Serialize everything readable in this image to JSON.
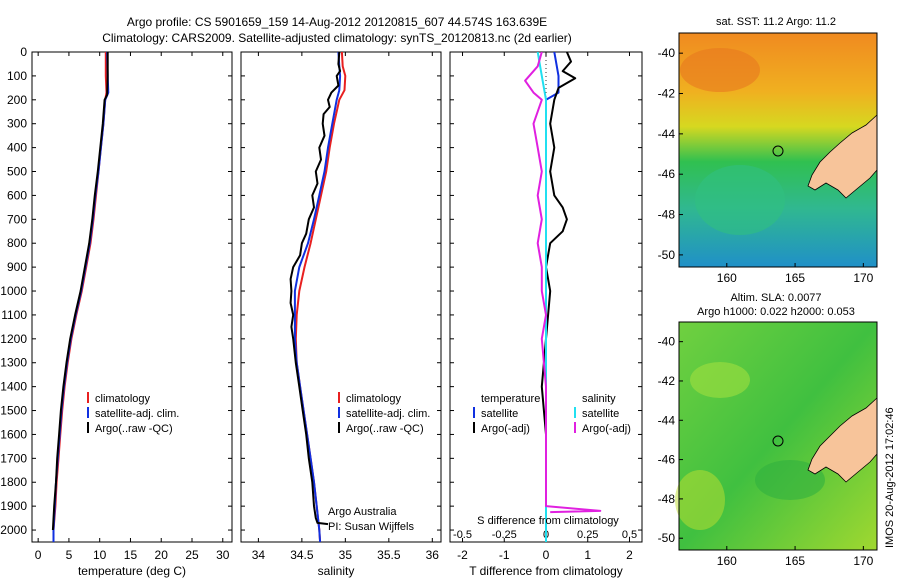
{
  "title": {
    "line1": "Argo profile: CS 5901659_159 14-Aug-2012 20120815_607 44.574S 163.639E",
    "line2": "Climatology: CARS2009. Satellite-adjusted climatology: synTS_20120813.nc (2d earlier)"
  },
  "colors": {
    "climatology": "#e82020",
    "satellite": "#1030e0",
    "argo": "#000000",
    "salinity_sat": "#20e0f0",
    "salinity_argo": "#e020e0",
    "land": "#f7c49a"
  },
  "chart_data": [
    {
      "type": "line",
      "name": "temperature-panel",
      "xlabel": "temperature (deg C)",
      "xlim": [
        -1,
        31.5
      ],
      "ylim": [
        2050,
        0
      ],
      "xticks": [
        0,
        5,
        10,
        15,
        20,
        25,
        30
      ],
      "yticks": [
        0,
        100,
        200,
        300,
        400,
        500,
        600,
        700,
        800,
        900,
        1000,
        1100,
        1200,
        1300,
        1400,
        1500,
        1600,
        1700,
        1800,
        1900,
        2000
      ],
      "legend": {
        "placement": "lower-center",
        "entries": [
          "climatology",
          "satellite-adj. clim.",
          "Argo(..raw -QC)"
        ]
      },
      "series": [
        {
          "name": "climatology",
          "color": "#e82020",
          "points": [
            [
              11.0,
              0
            ],
            [
              11.0,
              100
            ],
            [
              11.1,
              170
            ],
            [
              10.9,
              200
            ],
            [
              10.6,
              300
            ],
            [
              10.2,
              400
            ],
            [
              9.8,
              500
            ],
            [
              9.4,
              600
            ],
            [
              9.0,
              700
            ],
            [
              8.5,
              800
            ],
            [
              7.8,
              900
            ],
            [
              7.1,
              1000
            ],
            [
              6.2,
              1100
            ],
            [
              5.4,
              1200
            ],
            [
              4.8,
              1300
            ],
            [
              4.3,
              1400
            ],
            [
              3.9,
              1500
            ],
            [
              3.6,
              1600
            ],
            [
              3.3,
              1700
            ],
            [
              3.0,
              1800
            ],
            [
              2.8,
              1900
            ],
            [
              2.5,
              2000
            ],
            [
              2.5,
              2050
            ]
          ]
        },
        {
          "name": "satellite-adj. clim.",
          "color": "#1030e0",
          "points": [
            [
              11.2,
              0
            ],
            [
              11.3,
              100
            ],
            [
              11.4,
              170
            ],
            [
              10.9,
              200
            ],
            [
              10.6,
              300
            ],
            [
              10.2,
              400
            ],
            [
              9.8,
              500
            ],
            [
              9.3,
              600
            ],
            [
              8.9,
              700
            ],
            [
              8.4,
              800
            ],
            [
              7.7,
              900
            ],
            [
              7.0,
              1000
            ],
            [
              6.1,
              1100
            ],
            [
              5.3,
              1200
            ],
            [
              4.7,
              1300
            ],
            [
              4.2,
              1400
            ],
            [
              3.8,
              1500
            ],
            [
              3.5,
              1600
            ],
            [
              3.2,
              1700
            ],
            [
              2.9,
              1800
            ],
            [
              2.7,
              1900
            ],
            [
              2.5,
              2000
            ],
            [
              2.5,
              2050
            ]
          ]
        },
        {
          "name": "Argo(..raw -QC)",
          "color": "#000000",
          "points": [
            [
              11.3,
              0
            ],
            [
              11.3,
              100
            ],
            [
              11.2,
              180
            ],
            [
              10.8,
              200
            ],
            [
              10.5,
              300
            ],
            [
              10.1,
              400
            ],
            [
              9.7,
              500
            ],
            [
              9.2,
              600
            ],
            [
              8.8,
              700
            ],
            [
              8.3,
              800
            ],
            [
              7.6,
              900
            ],
            [
              6.9,
              1000
            ],
            [
              6.0,
              1100
            ],
            [
              5.2,
              1200
            ],
            [
              4.6,
              1300
            ],
            [
              4.1,
              1400
            ],
            [
              3.7,
              1500
            ],
            [
              3.4,
              1600
            ],
            [
              3.1,
              1700
            ],
            [
              2.9,
              1800
            ],
            [
              2.6,
              1900
            ],
            [
              2.4,
              2000
            ]
          ]
        }
      ]
    },
    {
      "type": "line",
      "name": "salinity-panel",
      "xlabel": "salinity",
      "xlim": [
        33.8,
        36.1
      ],
      "ylim": [
        2050,
        0
      ],
      "xticks": [
        34,
        34.5,
        35,
        35.5,
        36
      ],
      "legend": {
        "placement": "lower-right",
        "entries": [
          "climatology",
          "satellite-adj. clim.",
          "Argo(..raw -QC)"
        ]
      },
      "annotations": [
        "Argo Australia",
        "PI: Susan Wijffels"
      ],
      "series": [
        {
          "name": "climatology",
          "color": "#e82020",
          "points": [
            [
              34.96,
              0
            ],
            [
              34.97,
              60
            ],
            [
              35.0,
              100
            ],
            [
              34.99,
              160
            ],
            [
              34.93,
              200
            ],
            [
              34.87,
              300
            ],
            [
              34.82,
              400
            ],
            [
              34.78,
              500
            ],
            [
              34.72,
              600
            ],
            [
              34.66,
              700
            ],
            [
              34.6,
              800
            ],
            [
              34.53,
              900
            ],
            [
              34.47,
              1000
            ],
            [
              34.44,
              1100
            ],
            [
              34.43,
              1200
            ],
            [
              34.44,
              1300
            ],
            [
              34.48,
              1400
            ],
            [
              34.52,
              1500
            ],
            [
              34.56,
              1600
            ],
            [
              34.6,
              1700
            ],
            [
              34.64,
              1800
            ],
            [
              34.67,
              1900
            ],
            [
              34.7,
              2000
            ],
            [
              34.71,
              2050
            ]
          ]
        },
        {
          "name": "satellite-adj. clim.",
          "color": "#1030e0",
          "points": [
            [
              34.92,
              0
            ],
            [
              34.93,
              60
            ],
            [
              34.94,
              100
            ],
            [
              34.93,
              160
            ],
            [
              34.9,
              200
            ],
            [
              34.85,
              300
            ],
            [
              34.8,
              400
            ],
            [
              34.76,
              500
            ],
            [
              34.7,
              600
            ],
            [
              34.64,
              700
            ],
            [
              34.57,
              800
            ],
            [
              34.47,
              900
            ],
            [
              34.42,
              1000
            ],
            [
              34.42,
              1100
            ],
            [
              34.42,
              1200
            ],
            [
              34.44,
              1300
            ],
            [
              34.48,
              1400
            ],
            [
              34.52,
              1500
            ],
            [
              34.56,
              1600
            ],
            [
              34.6,
              1700
            ],
            [
              34.64,
              1800
            ],
            [
              34.67,
              1900
            ],
            [
              34.7,
              2000
            ],
            [
              34.71,
              2050
            ]
          ]
        },
        {
          "name": "Argo(..raw -QC)",
          "color": "#000000",
          "points": [
            [
              34.93,
              0
            ],
            [
              34.92,
              50
            ],
            [
              34.94,
              80
            ],
            [
              34.9,
              100
            ],
            [
              34.92,
              140
            ],
            [
              34.84,
              170
            ],
            [
              34.8,
              200
            ],
            [
              34.82,
              230
            ],
            [
              34.75,
              260
            ],
            [
              34.74,
              300
            ],
            [
              34.76,
              350
            ],
            [
              34.7,
              400
            ],
            [
              34.72,
              450
            ],
            [
              34.66,
              500
            ],
            [
              34.68,
              550
            ],
            [
              34.62,
              600
            ],
            [
              34.64,
              650
            ],
            [
              34.58,
              700
            ],
            [
              34.55,
              760
            ],
            [
              34.5,
              800
            ],
            [
              34.48,
              850
            ],
            [
              34.4,
              900
            ],
            [
              34.37,
              950
            ],
            [
              34.38,
              1000
            ],
            [
              34.37,
              1050
            ],
            [
              34.4,
              1100
            ],
            [
              34.38,
              1150
            ],
            [
              34.4,
              1200
            ],
            [
              34.43,
              1300
            ],
            [
              34.47,
              1400
            ],
            [
              34.51,
              1500
            ],
            [
              34.55,
              1600
            ],
            [
              34.58,
              1700
            ],
            [
              34.62,
              1800
            ],
            [
              34.64,
              1900
            ],
            [
              34.66,
              1950
            ],
            [
              34.68,
              1970
            ],
            [
              34.8,
              1975
            ]
          ]
        }
      ]
    },
    {
      "type": "line",
      "name": "difference-panel",
      "xlabel": "T difference from climatology",
      "x2label": "S difference from climatology",
      "xlim": [
        -2.3,
        2.3
      ],
      "ylim": [
        2050,
        0
      ],
      "xticks": [
        -2,
        -1,
        0,
        1,
        2
      ],
      "x2ticks": [
        "-0.5",
        "-0.25",
        "0",
        "0.25",
        "0.5"
      ],
      "x2tick_values": [
        -2,
        -1,
        0,
        1,
        2
      ],
      "legend": {
        "placement": "lower-center",
        "groups": [
          {
            "title": "temperature",
            "entries": [
              "satellite",
              "Argo(-adj)"
            ]
          },
          {
            "title": "salinity",
            "entries": [
              "satellite",
              "Argo(-adj)"
            ]
          }
        ]
      },
      "series": [
        {
          "name": "T satellite",
          "color": "#1030e0",
          "points": [
            [
              0.2,
              0
            ],
            [
              0.3,
              100
            ],
            [
              0.3,
              170
            ],
            [
              0.0,
              200
            ],
            [
              0.0,
              400
            ],
            [
              0.0,
              700
            ],
            [
              0.0,
              1000
            ],
            [
              0.0,
              1400
            ],
            [
              0.0,
              1800
            ],
            [
              0.0,
              2050
            ]
          ]
        },
        {
          "name": "T Argo(-adj)",
          "color": "#000000",
          "points": [
            [
              0.5,
              0
            ],
            [
              0.6,
              40
            ],
            [
              0.4,
              80
            ],
            [
              0.7,
              110
            ],
            [
              0.3,
              150
            ],
            [
              0.2,
              200
            ],
            [
              0.1,
              300
            ],
            [
              0.2,
              400
            ],
            [
              0.1,
              500
            ],
            [
              0.2,
              600
            ],
            [
              0.4,
              650
            ],
            [
              0.5,
              700
            ],
            [
              0.4,
              750
            ],
            [
              0.1,
              800
            ],
            [
              0.0,
              900
            ],
            [
              0.1,
              1000
            ],
            [
              0.0,
              1200
            ],
            [
              -0.1,
              1400
            ],
            [
              0.0,
              1600
            ],
            [
              0.0,
              1800
            ],
            [
              0.0,
              1950
            ],
            [
              0.0,
              2000
            ]
          ]
        },
        {
          "name": "S satellite",
          "color": "#20e0f0",
          "points": [
            [
              -0.2,
              0
            ],
            [
              -0.1,
              100
            ],
            [
              0.0,
              200
            ],
            [
              0.0,
              400
            ],
            [
              0.0,
              700
            ],
            [
              0.0,
              1000
            ],
            [
              0.0,
              1400
            ],
            [
              0.0,
              1800
            ],
            [
              0.0,
              2050
            ]
          ]
        },
        {
          "name": "S Argo(-adj)",
          "color": "#e020e0",
          "points": [
            [
              -0.1,
              0
            ],
            [
              -0.2,
              60
            ],
            [
              -0.5,
              120
            ],
            [
              -0.3,
              170
            ],
            [
              -0.1,
              200
            ],
            [
              -0.3,
              300
            ],
            [
              -0.2,
              400
            ],
            [
              -0.1,
              500
            ],
            [
              -0.2,
              600
            ],
            [
              -0.1,
              700
            ],
            [
              -0.2,
              800
            ],
            [
              -0.1,
              900
            ],
            [
              -0.1,
              1000
            ],
            [
              0.0,
              1100
            ],
            [
              -0.1,
              1200
            ],
            [
              0.0,
              1400
            ],
            [
              0.0,
              1600
            ],
            [
              0.0,
              1800
            ],
            [
              0.0,
              1900
            ],
            [
              1.3,
              1920
            ],
            [
              0.1,
              1925
            ]
          ]
        }
      ]
    },
    {
      "type": "heatmap",
      "name": "sst-map",
      "title": "sat. SST: 11.2 Argo: 11.2",
      "xlim": [
        156.5,
        171
      ],
      "ylim": [
        -50.6,
        -39
      ],
      "xticks": [
        160,
        165,
        170
      ],
      "yticks": [
        -40,
        -42,
        -44,
        -46,
        -48,
        -50
      ],
      "marker": {
        "lon": 163.64,
        "lat": -44.57
      }
    },
    {
      "type": "heatmap",
      "name": "sla-map",
      "title_line1": "Altim. SLA: 0.0077",
      "title_line2": "Argo h1000: 0.022 h2000: 0.053",
      "xlim": [
        156.5,
        171
      ],
      "ylim": [
        -50.6,
        -39
      ],
      "xticks": [
        160,
        165,
        170
      ],
      "yticks": [
        -40,
        -42,
        -44,
        -46,
        -48,
        -50
      ],
      "marker": {
        "lon": 163.64,
        "lat": -44.57
      }
    }
  ],
  "watermark": "IMOS 20-Aug-2012 17:02:46"
}
